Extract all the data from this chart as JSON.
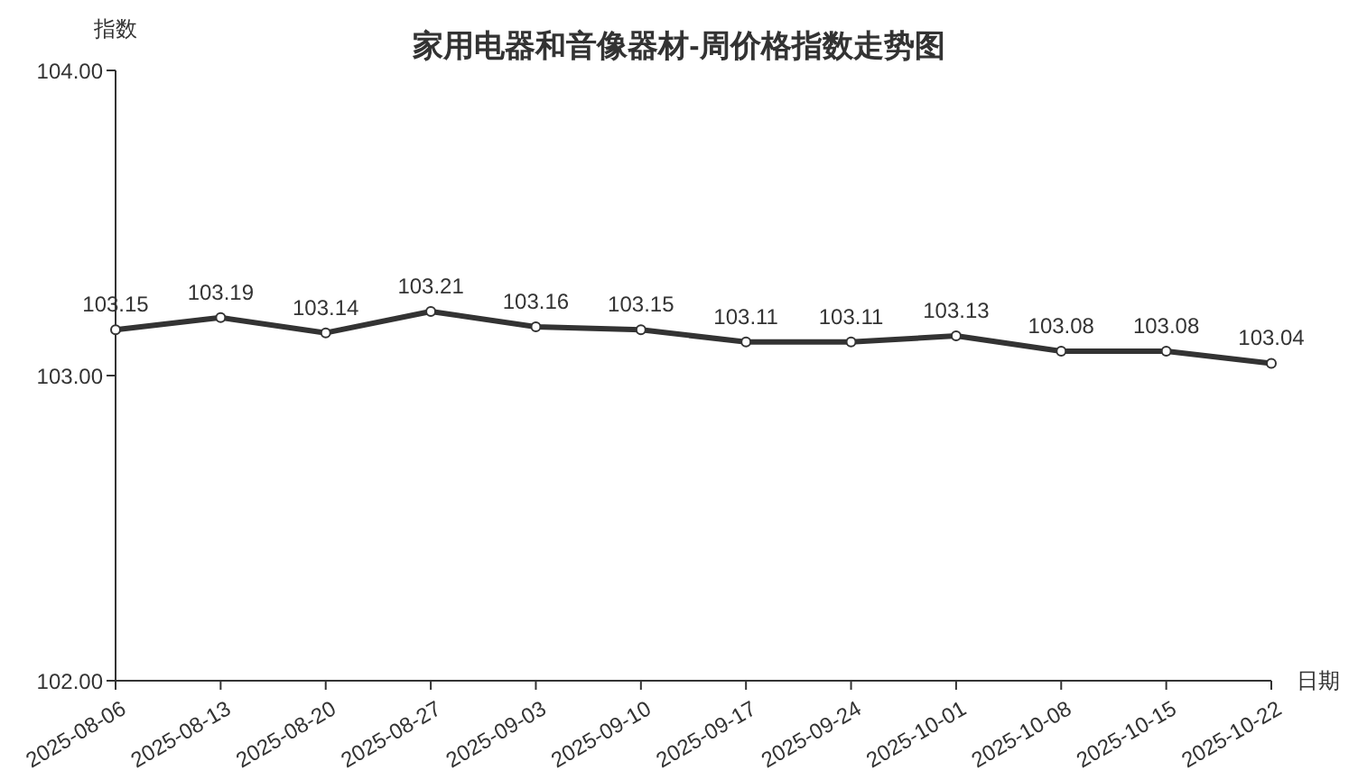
{
  "chart_data": {
    "type": "line",
    "title": "家用电器和音像器材-周价格指数走势图",
    "xlabel": "日期",
    "ylabel": "指数",
    "categories": [
      "2025-08-06",
      "2025-08-13",
      "2025-08-20",
      "2025-08-27",
      "2025-09-03",
      "2025-09-10",
      "2025-09-17",
      "2025-09-24",
      "2025-10-01",
      "2025-10-08",
      "2025-10-15",
      "2025-10-22"
    ],
    "series": [
      {
        "color": "#333333",
        "values": [
          103.15,
          103.19,
          103.14,
          103.21,
          103.16,
          103.15,
          103.11,
          103.11,
          103.13,
          103.08,
          103.08,
          103.04
        ]
      }
    ],
    "ylim": [
      102,
      104
    ],
    "yticks": [
      {
        "value": 102,
        "label": "102.00"
      },
      {
        "value": 103,
        "label": "103.00"
      },
      {
        "value": 104,
        "label": "104.00"
      }
    ],
    "data_labels": true,
    "marker": "circle",
    "line_style": "solid"
  }
}
